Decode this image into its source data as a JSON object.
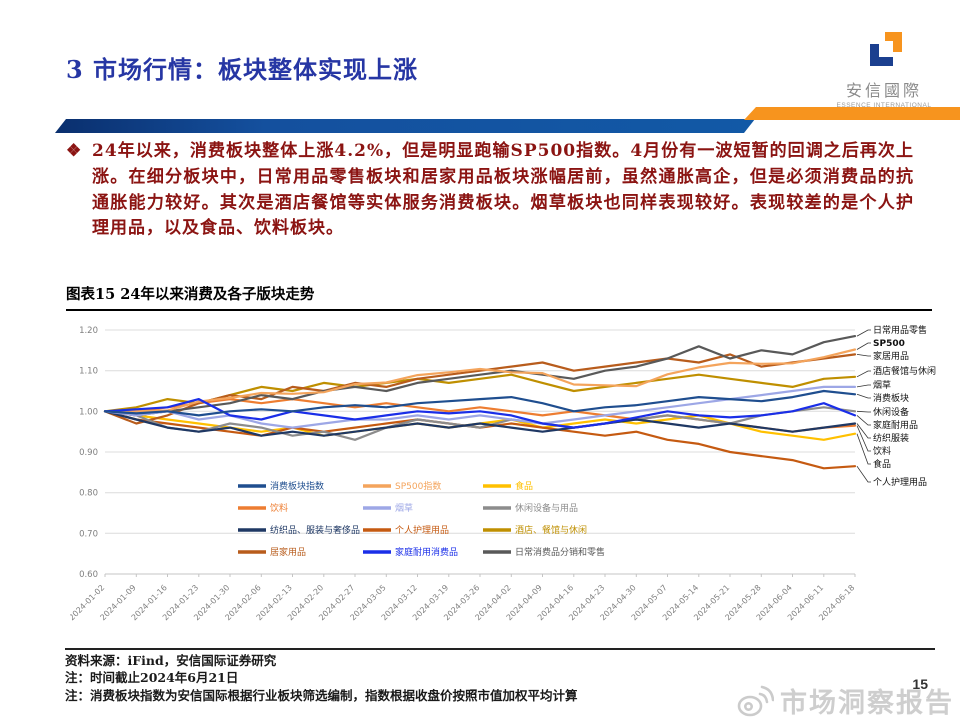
{
  "slide": {
    "title": "3 市场行情：板块整体实现上涨",
    "page_number": "15",
    "watermark": "市场洞察报告",
    "logo": {
      "name_cn": "安信國際",
      "name_en": "ESSENCE INTERNATIONAL"
    },
    "bullet": {
      "marker": "❖",
      "text": "24年以来，消费板块整体上涨4.2%，但是明显跑输SP500指数。4月份有一波短暂的回调之后再次上涨。在细分板块中，日常用品零售板块和居家用品板块涨幅居前，虽然通胀高企，但是必须消费品的抗通胀能力较好。其次是酒店餐馆等实体服务消费板块。烟草板块也同样表现较好。表现较差的是个人护理用品，以及食品、饮料板块。"
    },
    "notes": [
      "资料来源：iFind，安信国际证券研究",
      "注：时间截止2024年6月21日",
      "注：消费板块指数为安信国际根据行业板块筛选编制，指数根据收盘价按照市值加权平均计算"
    ],
    "colors": {
      "title_blue": "#2636A4",
      "body_red": "#8B1412",
      "bar_blue": "#1259A6",
      "bar_orange": "#F7941E"
    }
  },
  "chart_data": {
    "type": "line",
    "title": "图表15 24年以来消费及各子版块走势",
    "ylim": [
      0.6,
      1.2
    ],
    "ytick_step": 0.1,
    "grid": true,
    "legend_position": "inside-bottom",
    "x": [
      "2024-01-02",
      "2024-01-09",
      "2024-01-16",
      "2024-01-23",
      "2024-01-30",
      "2024-02-06",
      "2024-02-13",
      "2024-02-20",
      "2024-02-27",
      "2024-03-05",
      "2024-03-12",
      "2024-03-19",
      "2024-03-26",
      "2024-04-02",
      "2024-04-09",
      "2024-04-16",
      "2024-04-23",
      "2024-04-30",
      "2024-05-07",
      "2024-05-14",
      "2024-05-21",
      "2024-05-28",
      "2024-06-04",
      "2024-06-11",
      "2024-06-18"
    ],
    "series": [
      {
        "name": "消费板块指数",
        "color": "#1F4E8F",
        "values": [
          1.0,
          0.995,
          1.0,
          0.99,
          1.0,
          1.005,
          1.0,
          1.01,
          1.015,
          1.01,
          1.02,
          1.025,
          1.03,
          1.035,
          1.02,
          1.0,
          1.01,
          1.015,
          1.025,
          1.035,
          1.03,
          1.025,
          1.035,
          1.05,
          1.042
        ]
      },
      {
        "name": "SP500指数",
        "color": "#F4A45C",
        "values": [
          1.0,
          1.0,
          1.002,
          1.024,
          1.033,
          1.045,
          1.043,
          1.047,
          1.067,
          1.071,
          1.089,
          1.096,
          1.104,
          1.096,
          1.094,
          1.066,
          1.064,
          1.062,
          1.091,
          1.108,
          1.119,
          1.117,
          1.118,
          1.133,
          1.152
        ]
      },
      {
        "name": "食品",
        "color": "#FFC000",
        "values": [
          1.0,
          0.99,
          0.98,
          0.97,
          0.96,
          0.95,
          0.96,
          0.94,
          0.95,
          0.96,
          0.97,
          0.96,
          0.97,
          0.98,
          0.96,
          0.97,
          0.98,
          0.97,
          0.98,
          0.99,
          0.97,
          0.95,
          0.94,
          0.93,
          0.945
        ]
      },
      {
        "name": "饮料",
        "color": "#ED7D31",
        "values": [
          1.0,
          1.0,
          1.01,
          1.02,
          1.03,
          1.02,
          1.03,
          1.02,
          1.01,
          1.02,
          1.01,
          1.0,
          1.01,
          1.0,
          0.99,
          1.0,
          0.99,
          0.98,
          0.99,
          0.98,
          0.97,
          0.96,
          0.95,
          0.96,
          0.965
        ]
      },
      {
        "name": "烟草",
        "color": "#9DA7E6",
        "values": [
          1.0,
          0.99,
          1.0,
          0.98,
          0.99,
          0.97,
          0.96,
          0.97,
          0.98,
          0.98,
          0.99,
          0.98,
          0.99,
          0.98,
          0.97,
          0.98,
          0.99,
          1.0,
          1.01,
          1.02,
          1.03,
          1.04,
          1.05,
          1.06,
          1.06
        ]
      },
      {
        "name": "休闲设备与用品",
        "color": "#8C8C8C",
        "values": [
          1.0,
          0.99,
          0.96,
          0.95,
          0.97,
          0.96,
          0.94,
          0.95,
          0.93,
          0.96,
          0.98,
          0.97,
          0.96,
          0.98,
          0.97,
          0.96,
          0.97,
          0.98,
          0.99,
          0.98,
          0.97,
          0.99,
          1.0,
          1.01,
          1.0
        ]
      },
      {
        "name": "纺织品、服装与奢侈品",
        "color": "#1F3864",
        "values": [
          1.0,
          0.98,
          0.96,
          0.95,
          0.96,
          0.94,
          0.95,
          0.94,
          0.95,
          0.96,
          0.97,
          0.96,
          0.97,
          0.96,
          0.95,
          0.96,
          0.97,
          0.98,
          0.97,
          0.96,
          0.97,
          0.96,
          0.95,
          0.96,
          0.97
        ]
      },
      {
        "name": "个人护理用品",
        "color": "#C55A11",
        "values": [
          1.0,
          0.98,
          0.97,
          0.96,
          0.95,
          0.94,
          0.96,
          0.95,
          0.96,
          0.97,
          0.98,
          0.97,
          0.96,
          0.97,
          0.96,
          0.95,
          0.94,
          0.95,
          0.93,
          0.92,
          0.9,
          0.89,
          0.88,
          0.86,
          0.865
        ]
      },
      {
        "name": "酒店、餐馆与休闲",
        "color": "#BF8F00",
        "values": [
          1.0,
          1.01,
          1.03,
          1.02,
          1.04,
          1.06,
          1.05,
          1.07,
          1.06,
          1.07,
          1.08,
          1.07,
          1.08,
          1.09,
          1.07,
          1.05,
          1.06,
          1.07,
          1.08,
          1.09,
          1.08,
          1.07,
          1.06,
          1.08,
          1.085
        ]
      },
      {
        "name": "居家用品",
        "color": "#B85C1C",
        "values": [
          1.0,
          0.97,
          0.99,
          1.02,
          1.04,
          1.03,
          1.06,
          1.05,
          1.07,
          1.06,
          1.08,
          1.09,
          1.1,
          1.11,
          1.12,
          1.1,
          1.11,
          1.12,
          1.13,
          1.12,
          1.14,
          1.11,
          1.12,
          1.13,
          1.14
        ]
      },
      {
        "name": "家庭耐用消费品",
        "color": "#1A2EE8",
        "values": [
          1.0,
          1.005,
          1.01,
          1.03,
          0.99,
          0.98,
          1.0,
          0.99,
          0.98,
          0.99,
          1.0,
          0.995,
          1.0,
          0.99,
          0.97,
          0.96,
          0.97,
          0.985,
          1.0,
          0.99,
          0.985,
          0.99,
          1.0,
          1.02,
          0.99
        ]
      },
      {
        "name": "日常消费品分销和零售",
        "color": "#595959",
        "values": [
          1.0,
          0.99,
          1.0,
          1.01,
          1.02,
          1.04,
          1.03,
          1.05,
          1.06,
          1.05,
          1.07,
          1.08,
          1.09,
          1.1,
          1.09,
          1.08,
          1.1,
          1.11,
          1.13,
          1.16,
          1.13,
          1.15,
          1.14,
          1.17,
          1.185
        ]
      }
    ],
    "right_labels": [
      {
        "text": "日常用品零售",
        "series": 11
      },
      {
        "text": "SP500",
        "series": 1
      },
      {
        "text": "家居用品",
        "series": 9
      },
      {
        "text": "酒店餐馆与休闲",
        "series": 8
      },
      {
        "text": "烟草",
        "series": 4
      },
      {
        "text": "消费板块",
        "series": 0
      },
      {
        "text": "休闲设备",
        "series": 5
      },
      {
        "text": "家庭耐用品",
        "series": 10
      },
      {
        "text": "纺织服装",
        "series": 6
      },
      {
        "text": "饮料",
        "series": 3
      },
      {
        "text": "食品",
        "series": 2
      },
      {
        "text": "个人护理用品",
        "series": 7
      }
    ]
  }
}
